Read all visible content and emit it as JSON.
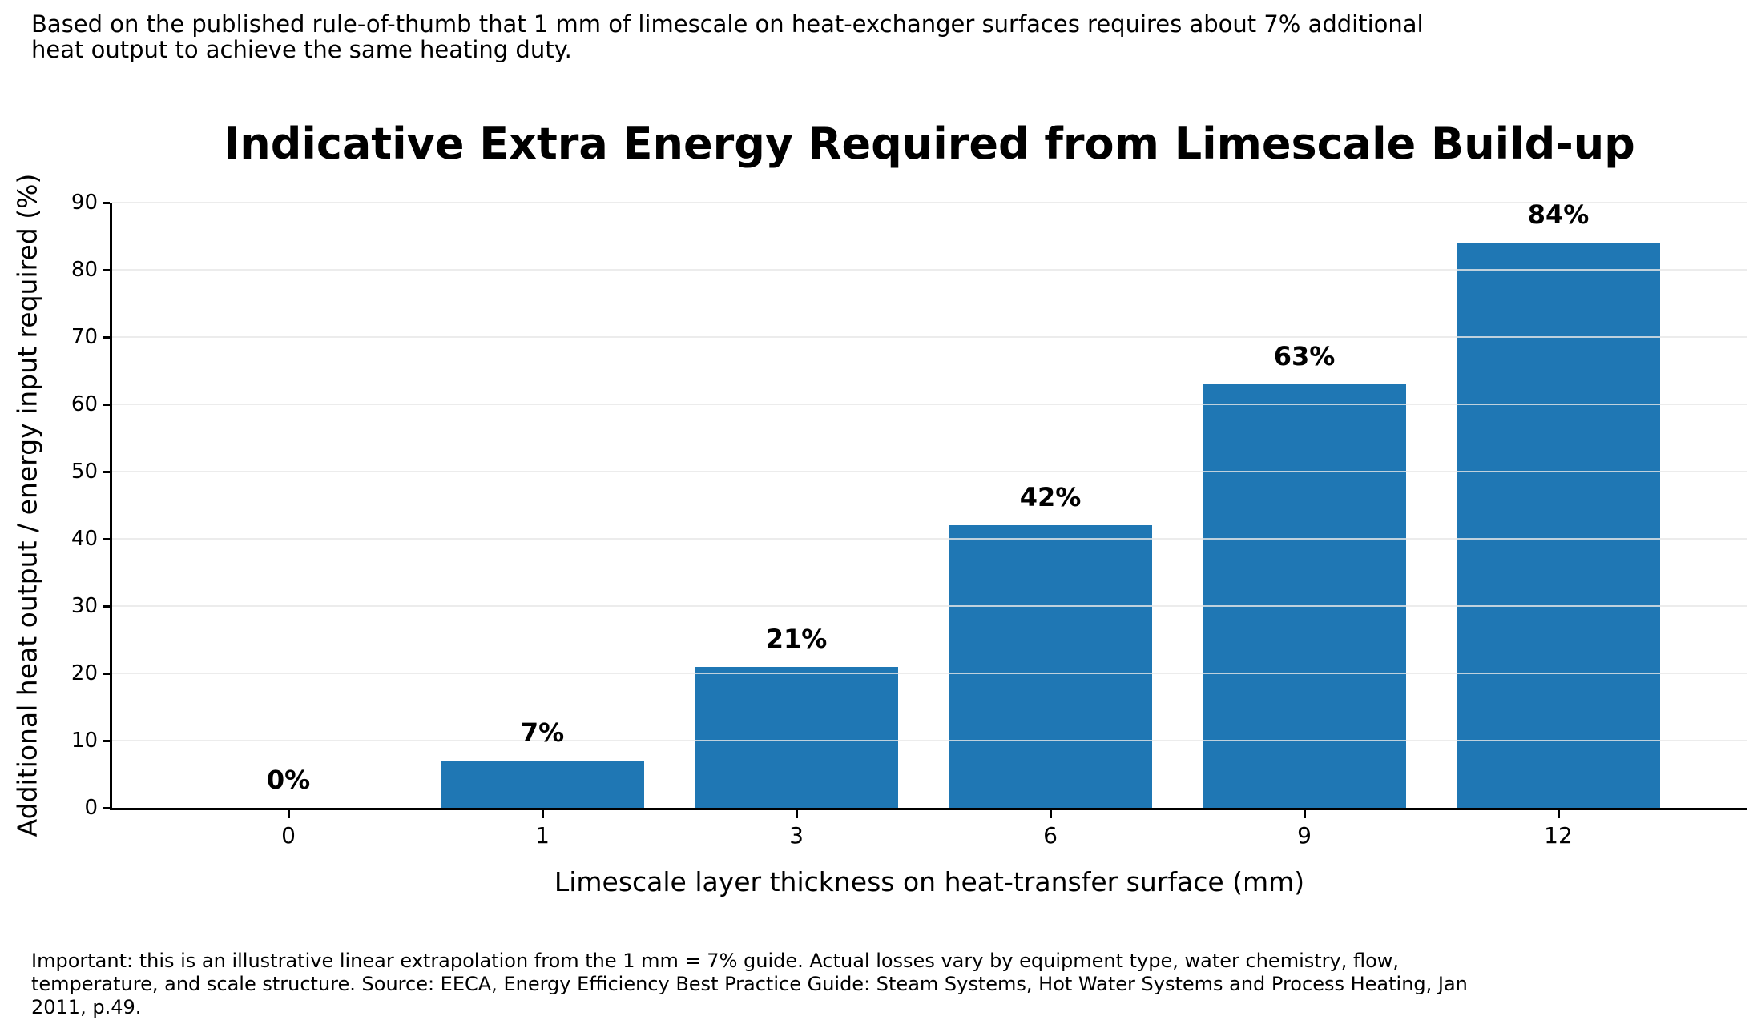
{
  "top_note": {
    "lines": [
      "Based on the published rule-of-thumb that 1 mm of limescale on heat-exchanger surfaces requires about 7% additional",
      "heat output to achieve the same heating duty."
    ]
  },
  "chart_data": {
    "type": "bar",
    "title": "Indicative Extra Energy Required from Limescale Build-up",
    "xlabel": "Limescale layer thickness on heat-transfer surface (mm)",
    "ylabel": "Additional heat output / energy input required (%)",
    "categories": [
      "0",
      "1",
      "3",
      "6",
      "9",
      "12"
    ],
    "values": [
      0,
      7,
      21,
      42,
      63,
      84
    ],
    "bar_labels": [
      "0%",
      "7%",
      "21%",
      "42%",
      "63%",
      "84%"
    ],
    "ylim": [
      0,
      90
    ],
    "yticks": [
      0,
      10,
      20,
      30,
      40,
      50,
      60,
      70,
      80,
      90
    ],
    "grid": true,
    "legend_position": "none",
    "colors": {
      "bar": "#1f77b4",
      "gridline": "rgba(231,231,231,0.8)",
      "axis": "#000000",
      "text": "#000000"
    }
  },
  "footer_note": {
    "lines": [
      "Important: this is an illustrative linear extrapolation from the 1 mm = 7% guide. Actual losses vary by equipment type, water chemistry, flow,",
      "temperature, and scale structure. Source: EECA, Energy Efficiency Best Practice Guide: Steam Systems, Hot Water Systems and Process Heating, Jan",
      "2011, p.49."
    ]
  }
}
